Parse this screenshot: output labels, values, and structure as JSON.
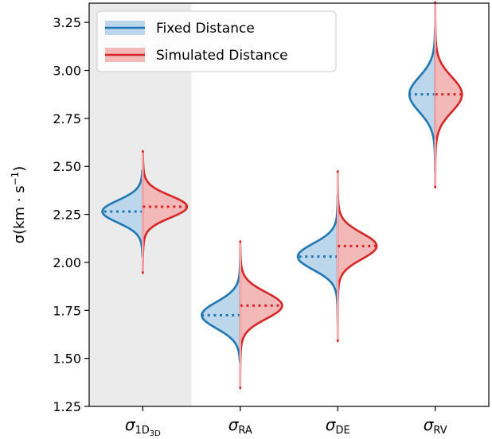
{
  "chart_data": {
    "type": "violin",
    "y_axis": {
      "label_prefix": "σ(km · s",
      "label_sup": "−1",
      "label_suffix": ")",
      "ylim": [
        1.25,
        3.35
      ],
      "ticks": [
        "1.25",
        "1.50",
        "1.75",
        "2.00",
        "2.25",
        "2.50",
        "2.75",
        "3.00",
        "3.25"
      ]
    },
    "categories": [
      {
        "main": "σ",
        "sub": "1D",
        "subsub": "3D",
        "highlight": true
      },
      {
        "main": "σ",
        "sub": "RA",
        "subsub": "",
        "highlight": false
      },
      {
        "main": "σ",
        "sub": "DE",
        "subsub": "",
        "highlight": false
      },
      {
        "main": "σ",
        "sub": "RV",
        "subsub": "",
        "highlight": false
      }
    ],
    "series": [
      {
        "name": "Fixed Distance",
        "side": "left",
        "color": "#1f77b4",
        "fill": "#bcd6eb",
        "violins": [
          {
            "min": 2.03,
            "max": 2.48,
            "median": 2.265,
            "width": 0.83,
            "sd": 0.057,
            "tail": 0.11
          },
          {
            "min": 1.48,
            "max": 2.08,
            "median": 1.725,
            "width": 0.79,
            "sd": 0.068,
            "tail": 0.12
          },
          {
            "min": 1.68,
            "max": 2.35,
            "median": 2.03,
            "width": 0.82,
            "sd": 0.067,
            "tail": 0.12
          },
          {
            "min": 2.47,
            "max": 3.22,
            "median": 2.875,
            "width": 0.53,
            "sd": 0.09,
            "tail": 0.16
          }
        ]
      },
      {
        "name": "Simulated Distance",
        "side": "right",
        "color": "#d62728",
        "fill": "#f3b8b8",
        "violins": [
          {
            "min": 1.945,
            "max": 2.58,
            "median": 2.29,
            "width": 0.91,
            "sd": 0.057,
            "tail": 0.11
          },
          {
            "min": 1.345,
            "max": 2.11,
            "median": 1.775,
            "width": 0.86,
            "sd": 0.068,
            "tail": 0.12
          },
          {
            "min": 1.59,
            "max": 2.475,
            "median": 2.085,
            "width": 0.8,
            "sd": 0.067,
            "tail": 0.12
          },
          {
            "min": 2.39,
            "max": 3.355,
            "median": 2.875,
            "width": 0.55,
            "sd": 0.09,
            "tail": 0.16
          }
        ]
      }
    ],
    "legend": {
      "position": "upper-left"
    },
    "highlight_band_color": "#ebebeb",
    "grid": false
  }
}
